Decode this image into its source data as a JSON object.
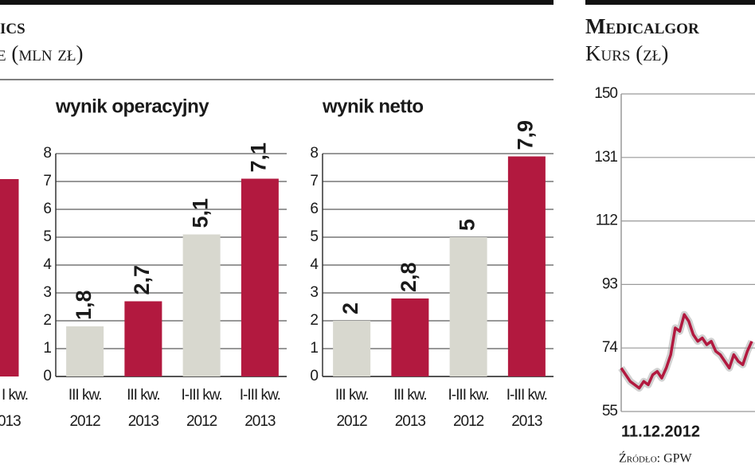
{
  "chart_data": [
    {
      "type": "bar",
      "title": "ics",
      "subtitle": "e (mln zł)",
      "categories": [
        [
          "I kw.",
          "013"
        ]
      ],
      "values": [
        15.5
      ],
      "colors": [
        "#b2193f"
      ],
      "ylim": [
        0,
        20
      ]
    },
    {
      "type": "bar",
      "title": "wynik operacyjny",
      "categories": [
        [
          "III kw.",
          "2012"
        ],
        [
          "III kw.",
          "2013"
        ],
        [
          "I-III kw.",
          "2012"
        ],
        [
          "I-III kw.",
          "2013"
        ]
      ],
      "values": [
        1.8,
        2.7,
        5.1,
        7.1
      ],
      "value_labels": [
        "1,8",
        "2,7",
        "5,1",
        "7,1"
      ],
      "colors": [
        "#d8d8cf",
        "#b2193f",
        "#d8d8cf",
        "#b2193f"
      ],
      "ylim": [
        0,
        8
      ],
      "yticks": [
        0,
        1,
        2,
        3,
        4,
        5,
        6,
        7,
        8
      ],
      "grid": true
    },
    {
      "type": "bar",
      "title": "wynik netto",
      "categories": [
        [
          "III kw.",
          "2012"
        ],
        [
          "III kw.",
          "2013"
        ],
        [
          "I-III kw.",
          "2012"
        ],
        [
          "I-III kw.",
          "2013"
        ]
      ],
      "values": [
        2,
        2.8,
        5,
        7.9
      ],
      "value_labels": [
        "2",
        "2,8",
        "5",
        "7,9"
      ],
      "colors": [
        "#d8d8cf",
        "#b2193f",
        "#d8d8cf",
        "#b2193f"
      ],
      "ylim": [
        0,
        8
      ],
      "yticks": [
        0,
        1,
        2,
        3,
        4,
        5,
        6,
        7,
        8
      ],
      "grid": true
    },
    {
      "type": "line",
      "title": "Medicalgor",
      "subtitle": "Kurs (zł)",
      "source": "Źródło: GPW",
      "categories": [
        "11.12.2012",
        null,
        null,
        null,
        null,
        null,
        null,
        null,
        null,
        null,
        null,
        null,
        null,
        null,
        null,
        null,
        null,
        null,
        null,
        null,
        null,
        null,
        null,
        null,
        null,
        null,
        null,
        null,
        null,
        null
      ],
      "series": [
        {
          "name": null,
          "color": "#b2193f",
          "values": [
            68,
            66,
            64,
            63,
            62,
            64,
            63,
            66,
            67,
            65,
            68,
            72,
            80,
            79,
            84,
            82,
            78,
            76,
            77,
            75,
            76,
            73,
            72,
            70,
            68,
            72,
            70,
            69,
            73,
            76
          ]
        }
      ],
      "ylim": [
        55,
        150
      ],
      "yticks": [
        55,
        74,
        93,
        112,
        131,
        150
      ],
      "grid": true
    }
  ]
}
